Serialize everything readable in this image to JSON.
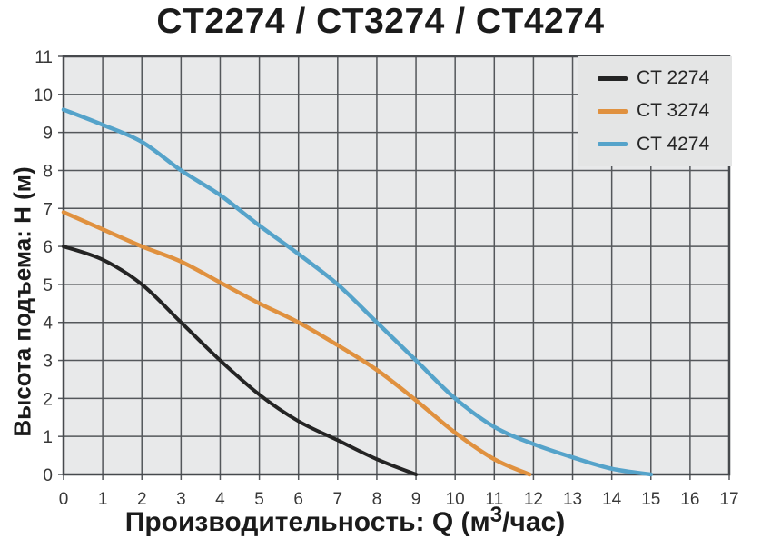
{
  "title": "CT2274 / CT3274 / CT4274",
  "axes": {
    "y_label": "Высота подъема: H (м)",
    "x_label_pre": "Производительность: Q (м",
    "x_label_sup": "3",
    "x_label_post": "/час)"
  },
  "colors": {
    "plot_background": "#e8e9ea",
    "grid": "#54575b",
    "border": "#46494d",
    "tick_text": "#383838",
    "title_text": "#1b1b1b",
    "legend_background": "#e4e5e5"
  },
  "chart_data": {
    "type": "line",
    "title": "CT2274 / CT3274 / CT4274",
    "xlabel": "Производительность: Q (м3/час)",
    "ylabel": "Высота подъема: H (м)",
    "xlim": [
      0,
      17
    ],
    "ylim": [
      0,
      11
    ],
    "xticks": [
      0,
      1,
      2,
      3,
      4,
      5,
      6,
      7,
      8,
      9,
      10,
      11,
      12,
      13,
      14,
      15,
      16,
      17
    ],
    "yticks": [
      0,
      1,
      2,
      3,
      4,
      5,
      6,
      7,
      8,
      9,
      10,
      11
    ],
    "grid": true,
    "legend_position": "top-right",
    "series": [
      {
        "name": "CT 2274",
        "color": "#242424",
        "stroke_width": 4,
        "points": [
          [
            0,
            6.0
          ],
          [
            1,
            5.65
          ],
          [
            2,
            5.0
          ],
          [
            3,
            4.0
          ],
          [
            4,
            3.0
          ],
          [
            5,
            2.1
          ],
          [
            6,
            1.4
          ],
          [
            7,
            0.9
          ],
          [
            8,
            0.4
          ],
          [
            9,
            0.0
          ]
        ]
      },
      {
        "name": "CT 3274",
        "color": "#e0913f",
        "stroke_width": 4.5,
        "points": [
          [
            0,
            6.9
          ],
          [
            1,
            6.45
          ],
          [
            2,
            6.0
          ],
          [
            3,
            5.6
          ],
          [
            4,
            5.05
          ],
          [
            5,
            4.5
          ],
          [
            6,
            4.0
          ],
          [
            7,
            3.4
          ],
          [
            8,
            2.75
          ],
          [
            9,
            1.95
          ],
          [
            10,
            1.1
          ],
          [
            11,
            0.4
          ],
          [
            11.9,
            0.0
          ]
        ]
      },
      {
        "name": "CT 4274",
        "color": "#55a3ca",
        "stroke_width": 4.5,
        "points": [
          [
            0,
            9.6
          ],
          [
            1,
            9.2
          ],
          [
            2,
            8.75
          ],
          [
            3,
            8.0
          ],
          [
            4,
            7.35
          ],
          [
            5,
            6.55
          ],
          [
            6,
            5.8
          ],
          [
            7,
            5.0
          ],
          [
            8,
            4.0
          ],
          [
            9,
            3.0
          ],
          [
            10,
            2.0
          ],
          [
            11,
            1.25
          ],
          [
            12,
            0.8
          ],
          [
            13,
            0.45
          ],
          [
            14,
            0.15
          ],
          [
            15,
            0.0
          ]
        ]
      }
    ]
  }
}
